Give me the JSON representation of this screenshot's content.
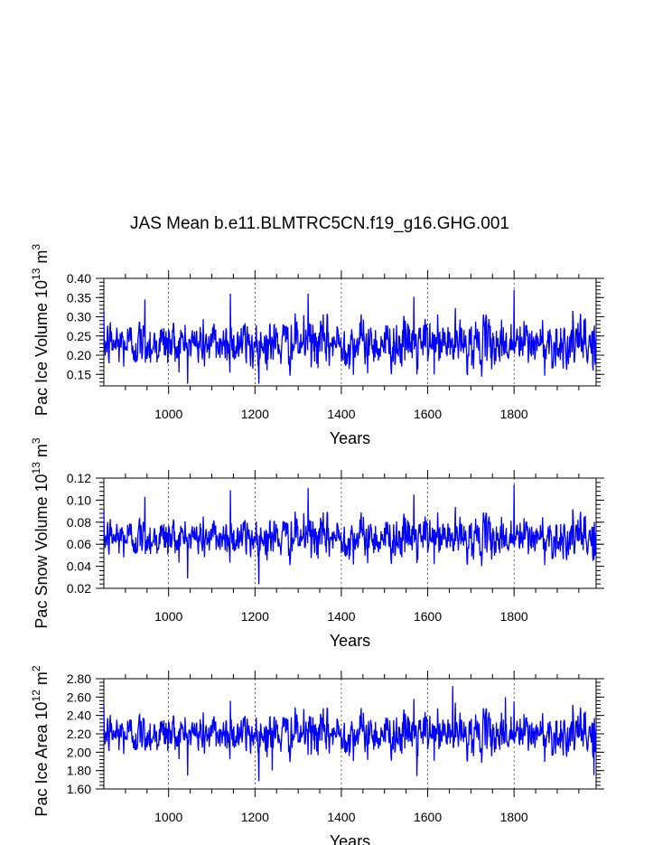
{
  "figure": {
    "title": "JAS Mean b.e11.BLMTRC5CN.f19_g16.GHG.001"
  },
  "chart_data": [
    {
      "type": "line",
      "ylabel": "Pac Ice Volume 10",
      "ylabel_exp": "13",
      "ylabel_unit": " m",
      "ylabel_unit_exp": "3",
      "xlabel": "Years",
      "xlim": [
        850,
        1990
      ],
      "ylim": [
        0.12,
        0.4
      ],
      "xticks": [
        "1000",
        "1200",
        "1400",
        "1600",
        "1800"
      ],
      "xtick_values": [
        1000,
        1200,
        1400,
        1600,
        1800
      ],
      "yticks": [
        "0.15",
        "0.20",
        "0.25",
        "0.30",
        "0.35",
        "0.40"
      ],
      "ytick_values": [
        0.15,
        0.2,
        0.25,
        0.3,
        0.35,
        0.4
      ],
      "grid": "vertical dashed at x major ticks",
      "series_color": "#0000ff",
      "mean": 0.23,
      "std": 0.03,
      "spikes": [
        [
          945,
          0.345
        ],
        [
          1143,
          0.36
        ],
        [
          1323,
          0.36
        ],
        [
          1568,
          0.352
        ],
        [
          1575,
          0.15
        ],
        [
          1800,
          0.37
        ],
        [
          1195,
          0.165
        ]
      ]
    },
    {
      "type": "line",
      "ylabel": "Pac Snow Volume 10",
      "ylabel_exp": "13",
      "ylabel_unit": " m",
      "ylabel_unit_exp": "3",
      "xlabel": "Years",
      "xlim": [
        850,
        1990
      ],
      "ylim": [
        0.02,
        0.12
      ],
      "xticks": [
        "1000",
        "1200",
        "1400",
        "1600",
        "1800"
      ],
      "xtick_values": [
        1000,
        1200,
        1400,
        1600,
        1800
      ],
      "yticks": [
        "0.02",
        "0.04",
        "0.06",
        "0.08",
        "0.10",
        "0.12"
      ],
      "ytick_values": [
        0.02,
        0.04,
        0.06,
        0.08,
        0.1,
        0.12
      ],
      "grid": "vertical dashed at x major ticks",
      "series_color": "#0000ff",
      "mean": 0.066,
      "std": 0.009,
      "spikes": [
        [
          945,
          0.103
        ],
        [
          1143,
          0.109
        ],
        [
          1323,
          0.111
        ],
        [
          1568,
          0.105
        ],
        [
          1575,
          0.043
        ],
        [
          1800,
          0.114
        ],
        [
          1985,
          0.046
        ]
      ]
    },
    {
      "type": "line",
      "ylabel": "Pac Ice Area 10",
      "ylabel_exp": "12",
      "ylabel_unit": " m",
      "ylabel_unit_exp": "2",
      "xlabel": "Years",
      "xlim": [
        850,
        1990
      ],
      "ylim": [
        1.6,
        2.8
      ],
      "xticks": [
        "1000",
        "1200",
        "1400",
        "1600",
        "1800"
      ],
      "xtick_values": [
        1000,
        1200,
        1400,
        1600,
        1800
      ],
      "yticks": [
        "1.60",
        "1.80",
        "2.00",
        "2.20",
        "2.40",
        "2.60",
        "2.80"
      ],
      "ytick_values": [
        1.6,
        1.8,
        2.0,
        2.2,
        2.4,
        2.6,
        2.8
      ],
      "grid": "vertical dashed at x major ticks",
      "series_color": "#0000ff",
      "mean": 2.2,
      "std": 0.11,
      "spikes": [
        [
          1143,
          2.56
        ],
        [
          1568,
          2.58
        ],
        [
          1575,
          1.74
        ],
        [
          1658,
          2.72
        ],
        [
          1780,
          2.6
        ],
        [
          1800,
          2.55
        ],
        [
          1240,
          1.8
        ],
        [
          1985,
          1.75
        ]
      ]
    }
  ]
}
